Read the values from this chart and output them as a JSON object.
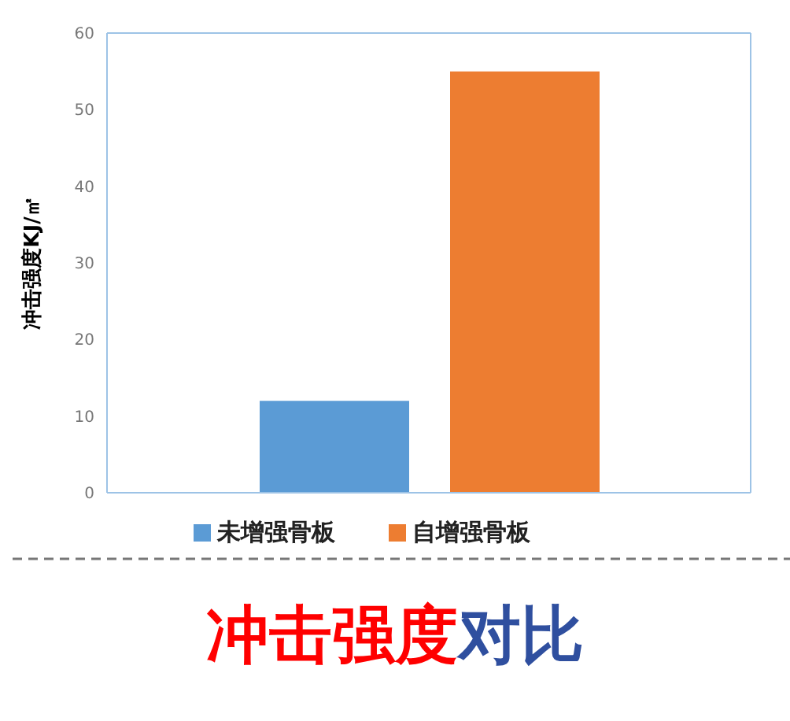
{
  "chart_data": {
    "type": "bar",
    "title": "冲击强度对比",
    "ylabel": "冲击强度KJ/㎡",
    "categories": [
      null
    ],
    "series": [
      {
        "name": "未增强骨板",
        "color": "#5b9bd5",
        "values": [
          12
        ]
      },
      {
        "name": "自增强骨板",
        "color": "#ed7d31",
        "values": [
          55
        ]
      }
    ],
    "ylim": [
      0,
      60
    ],
    "yticks": [
      0,
      10,
      20,
      30,
      40,
      50,
      60
    ],
    "grid": false,
    "legend": "bottom"
  }
}
